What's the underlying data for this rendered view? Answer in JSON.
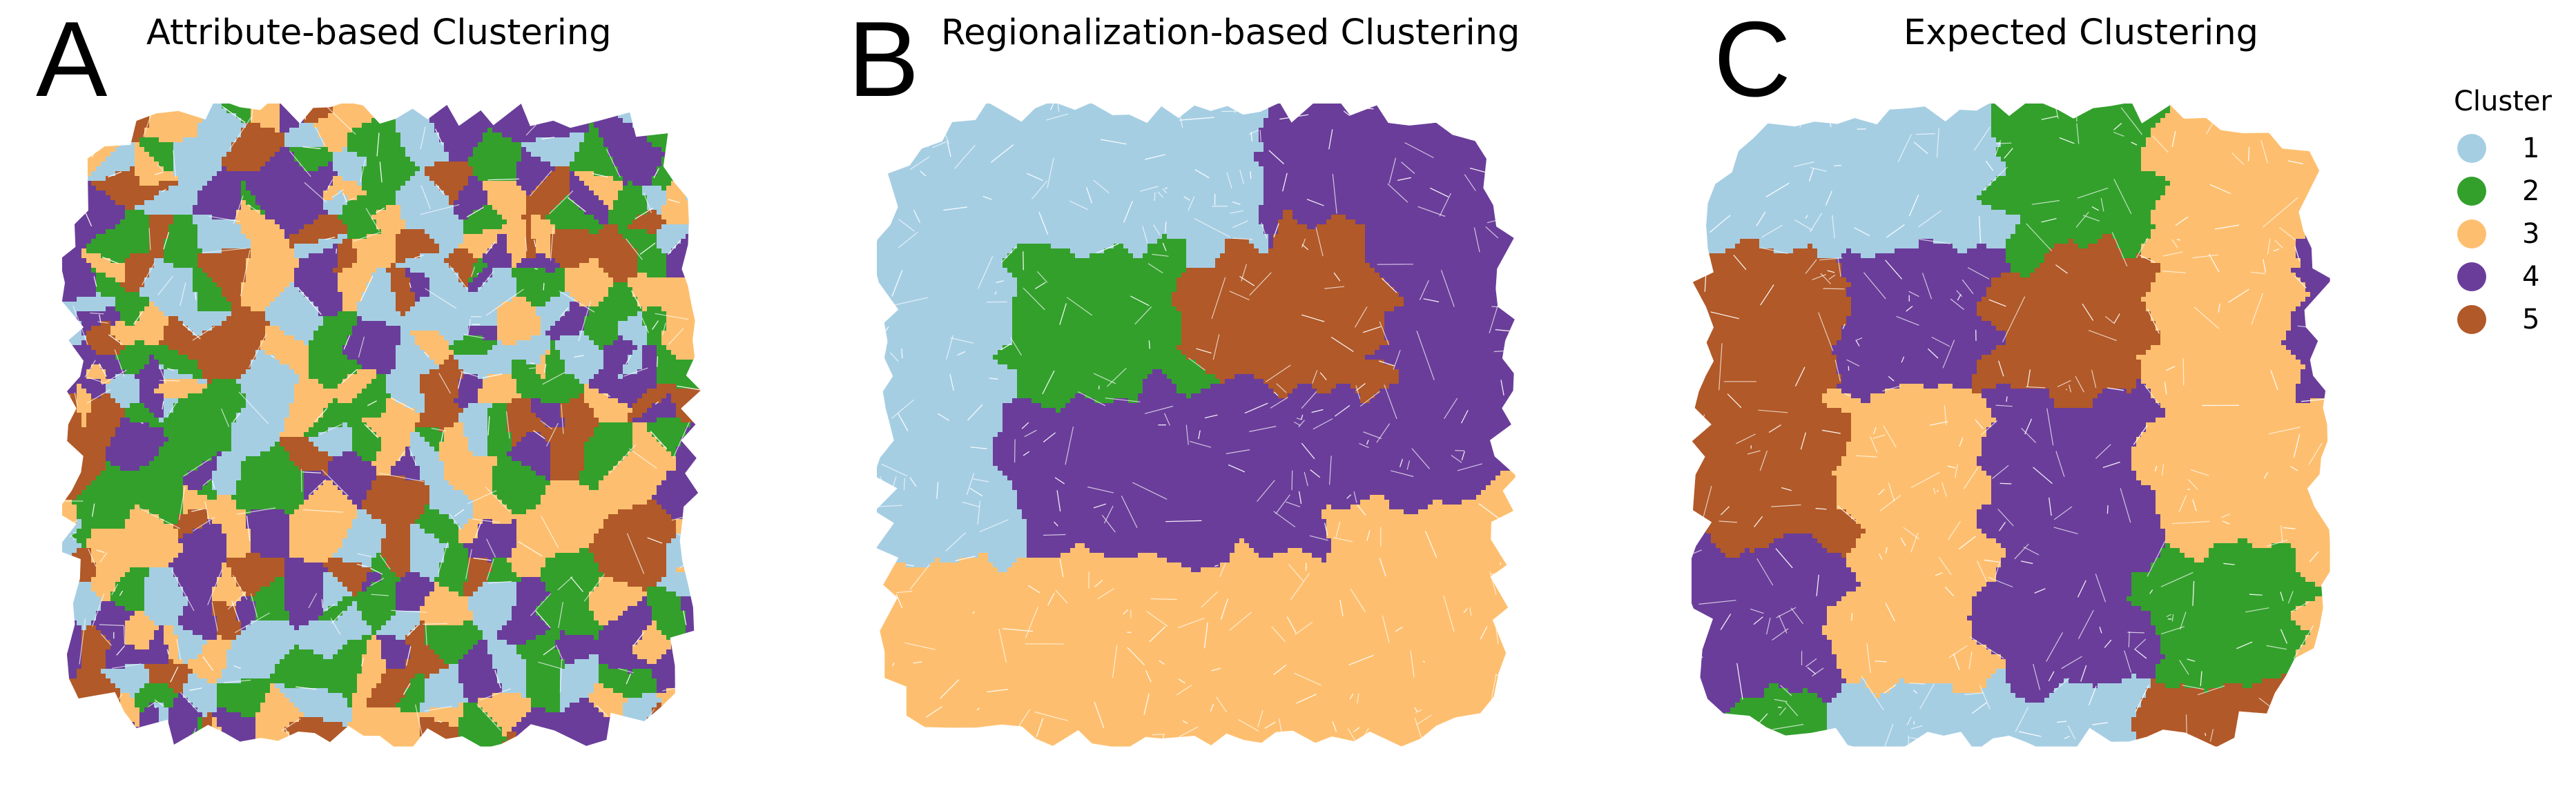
{
  "panels": [
    {
      "letter": "A",
      "title": "Attribute-based Clustering",
      "layout": "random"
    },
    {
      "letter": "B",
      "title": "Regionalization-based Clustering",
      "layout": "regions"
    },
    {
      "letter": "C",
      "title": "Expected Clustering",
      "layout": "patches"
    }
  ],
  "legend": {
    "title": "Cluster",
    "items": [
      {
        "label": "1",
        "color": "#a6cee3"
      },
      {
        "label": "2",
        "color": "#33a02c"
      },
      {
        "label": "3",
        "color": "#fdbf6f"
      },
      {
        "label": "4",
        "color": "#6a3d9a"
      },
      {
        "label": "5",
        "color": "#b15928"
      }
    ]
  }
}
